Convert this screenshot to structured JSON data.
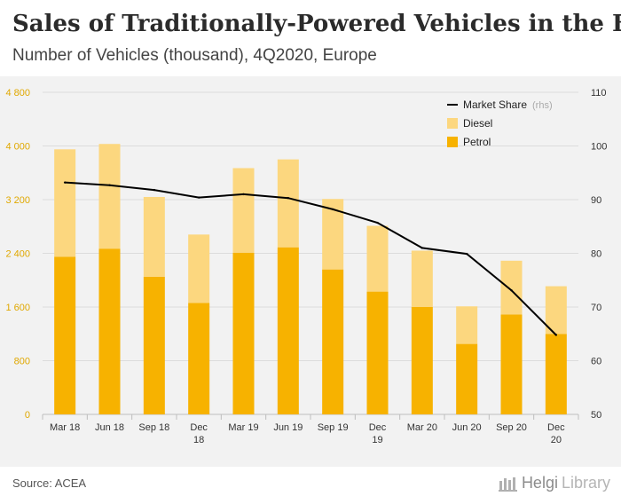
{
  "header": {
    "title": "Sales of Traditionally-Powered Vehicles in the EU",
    "subtitle": "Number of Vehicles (thousand), 4Q2020, Europe"
  },
  "footer": {
    "source": "Source: ACEA",
    "brand_helgi": "Helgi",
    "brand_library": "Library"
  },
  "colors": {
    "petrol": "#f7b200",
    "diesel": "#fcd77f",
    "market_share": "#000000",
    "axis_text_left": "#e0a800",
    "axis_text": "#333333"
  },
  "chart_data": {
    "type": "bar",
    "categories": [
      "Mar 18",
      "Jun 18",
      "Sep 18",
      "Dec 18",
      "Mar 19",
      "Jun 19",
      "Sep 19",
      "Dec 19",
      "Mar 20",
      "Jun 20",
      "Sep 20",
      "Dec 20"
    ],
    "category_lines": [
      [
        "Mar 18"
      ],
      [
        "Jun 18"
      ],
      [
        "Sep 18"
      ],
      [
        "Dec",
        "18"
      ],
      [
        "Mar 19"
      ],
      [
        "Jun 19"
      ],
      [
        "Sep 19"
      ],
      [
        "Dec",
        "19"
      ],
      [
        "Mar 20"
      ],
      [
        "Jun 20"
      ],
      [
        "Sep 20"
      ],
      [
        "Dec",
        "20"
      ]
    ],
    "series": [
      {
        "name": "Petrol",
        "type": "bar",
        "stack": "main",
        "values": [
          2350,
          2470,
          2050,
          1660,
          2410,
          2490,
          2160,
          1830,
          1600,
          1050,
          1490,
          1200
        ]
      },
      {
        "name": "Diesel",
        "type": "bar",
        "stack": "main",
        "values": [
          1600,
          1560,
          1190,
          1020,
          1260,
          1310,
          1050,
          980,
          840,
          560,
          800,
          710
        ]
      },
      {
        "name": "Market Share",
        "legend_suffix": "(rhs)",
        "type": "line",
        "axis": "right",
        "values": [
          93.2,
          92.7,
          91.8,
          90.4,
          91.0,
          90.3,
          88.2,
          85.7,
          81.0,
          79.9,
          73.1,
          64.8
        ]
      }
    ],
    "y_left": {
      "min": 0,
      "max": 4800,
      "ticks": [
        0,
        800,
        1600,
        2400,
        3200,
        4000,
        4800
      ],
      "tick_labels": [
        "0",
        "800",
        "1 600",
        "2 400",
        "3 200",
        "4 000",
        "4 800"
      ]
    },
    "y_right": {
      "min": 50,
      "max": 110,
      "ticks": [
        50,
        60,
        70,
        80,
        90,
        100,
        110
      ]
    },
    "grid": true,
    "legend_position": "top-right"
  }
}
